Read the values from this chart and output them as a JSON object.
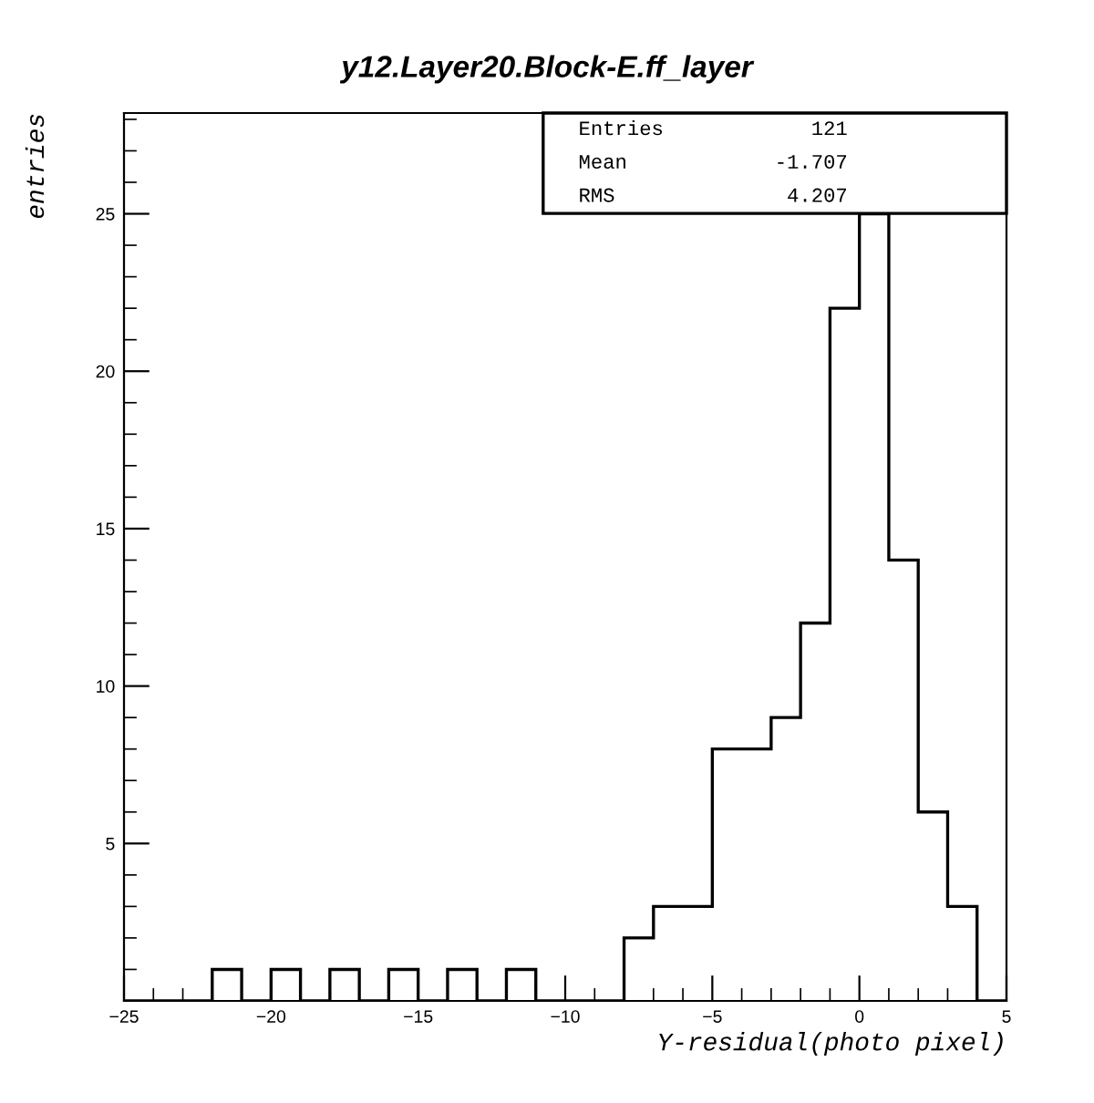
{
  "chart_data": {
    "type": "histogram",
    "title": "y12.Layer20.Block-E.ff_layer",
    "xlabel": "Y-residual(photo pixel)",
    "ylabel": "entries",
    "bins": [
      -25,
      -24,
      -23,
      -22,
      -21,
      -20,
      -19,
      -18,
      -17,
      -16,
      -15,
      -14,
      -13,
      -12,
      -11,
      -10,
      -9,
      -8,
      -7,
      -6,
      -5,
      -4,
      -3,
      -2,
      -1,
      0,
      1,
      2,
      3,
      4,
      5
    ],
    "values": [
      0,
      0,
      0,
      1,
      0,
      1,
      0,
      1,
      0,
      1,
      0,
      1,
      0,
      1,
      0,
      0,
      0,
      2,
      3,
      3,
      8,
      8,
      9,
      12,
      22,
      25,
      14,
      6,
      3,
      0
    ],
    "color": "#000000",
    "xlim": [
      -25,
      5
    ],
    "xticks": [
      {
        "value": -25,
        "label": "−25"
      },
      {
        "value": -20,
        "label": "−20"
      },
      {
        "value": -15,
        "label": "−15"
      },
      {
        "value": -10,
        "label": "−10"
      },
      {
        "value": -5,
        "label": "−5"
      },
      0,
      5
    ],
    "ylim": [
      0,
      28.2
    ],
    "yticks": [
      5,
      10,
      15,
      20,
      25
    ],
    "grid": false,
    "legend": false,
    "annotations": [
      "Entries",
      "121",
      "Mean",
      "-1.707",
      "RMS",
      "4.207"
    ]
  }
}
